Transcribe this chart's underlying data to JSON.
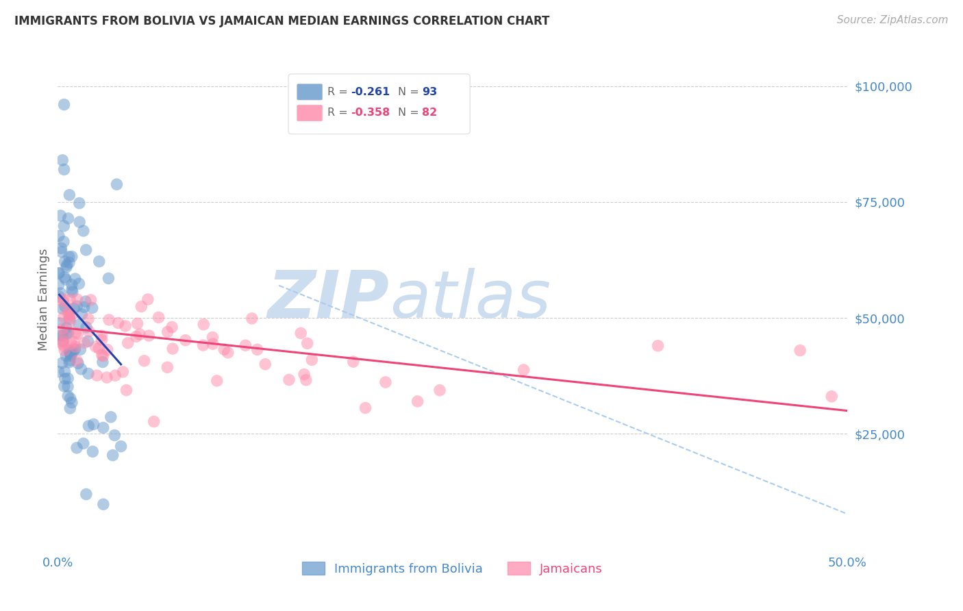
{
  "title": "IMMIGRANTS FROM BOLIVIA VS JAMAICAN MEDIAN EARNINGS CORRELATION CHART",
  "source": "Source: ZipAtlas.com",
  "ylabel": "Median Earnings",
  "xlim": [
    0.0,
    0.5
  ],
  "ylim": [
    0,
    108000
  ],
  "series1_label": "Immigrants from Bolivia",
  "series2_label": "Jamaicans",
  "color_blue": "#6699CC",
  "color_pink": "#FF88AA",
  "color_blue_line": "#2244AA",
  "color_pink_line": "#EE4477",
  "color_dashed": "#AACCEE",
  "axis_label_color": "#4488CC",
  "watermark_color": "#CCDDF0",
  "background_color": "#FFFFFF",
  "legend_r1": "-0.261",
  "legend_n1": "93",
  "legend_r2": "-0.358",
  "legend_n2": "82",
  "bolivia_trend": [
    0.001,
    55000,
    0.04,
    40000
  ],
  "jamaica_trend": [
    0.0,
    48000,
    0.5,
    30000
  ],
  "dash_line": [
    0.14,
    57000,
    0.52,
    5000
  ]
}
